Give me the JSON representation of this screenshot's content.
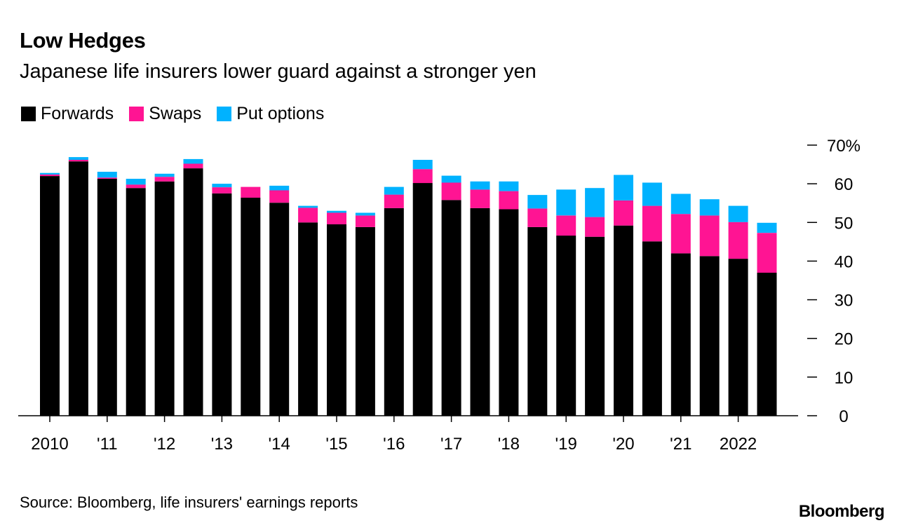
{
  "chart_data": {
    "type": "bar",
    "stacked": true,
    "title": "Low Hedges",
    "subtitle": "Japanese life insurers lower guard against a stronger yen",
    "ylabel": "",
    "xlabel": "",
    "ylim": [
      0,
      70
    ],
    "yticks": [
      0,
      10,
      20,
      30,
      40,
      50,
      60,
      70
    ],
    "ytick_labels": [
      "0",
      "10",
      "20",
      "30",
      "40",
      "50",
      "60",
      "70%"
    ],
    "y_axis_side": "right",
    "categories": [
      "2010 H1",
      "2010 H2",
      "2011 H1",
      "2011 H2",
      "2012 H1",
      "2012 H2",
      "2013 H1",
      "2013 H2",
      "2014 H1",
      "2014 H2",
      "2015 H1",
      "2015 H2",
      "2016 H1",
      "2016 H2",
      "2017 H1",
      "2017 H2",
      "2018 H1",
      "2018 H2",
      "2019 H1",
      "2019 H2",
      "2020 H1",
      "2020 H2",
      "2021 H1",
      "2021 H2",
      "2022 H1",
      "2022 H2"
    ],
    "xtick_labels": [
      "2010",
      "'11",
      "'12",
      "'13",
      "'14",
      "'15",
      "'16",
      "'17",
      "'18",
      "'19",
      "'20",
      "'21",
      "2022"
    ],
    "series": [
      {
        "name": "Forwards",
        "color": "#000000",
        "values": [
          62.0,
          65.8,
          61.3,
          58.9,
          60.6,
          64.0,
          57.5,
          56.4,
          55.1,
          50.0,
          49.5,
          48.8,
          53.7,
          60.2,
          55.8,
          53.7,
          53.4,
          48.8,
          46.6,
          46.3,
          49.2,
          45.1,
          42.0,
          41.3,
          40.6,
          37.0
        ]
      },
      {
        "name": "Swaps",
        "color": "#ff1493",
        "values": [
          0.4,
          0.4,
          0.3,
          0.9,
          1.2,
          1.2,
          1.6,
          2.8,
          3.2,
          3.8,
          3.0,
          3.0,
          3.5,
          3.6,
          4.5,
          4.8,
          4.7,
          4.8,
          5.2,
          5.1,
          6.5,
          9.2,
          10.2,
          10.5,
          9.5,
          10.3
        ]
      },
      {
        "name": "Put options",
        "color": "#00b2ff",
        "values": [
          0.4,
          0.7,
          1.5,
          1.5,
          0.8,
          1.2,
          0.9,
          0.0,
          1.2,
          0.5,
          0.5,
          0.7,
          2.0,
          2.4,
          1.8,
          2.1,
          2.5,
          3.5,
          6.7,
          7.5,
          6.6,
          6.0,
          5.2,
          4.2,
          4.2,
          2.6
        ]
      }
    ],
    "legend_position": "top-left",
    "grid": false
  },
  "source": "Source: Bloomberg, life insurers' earnings reports",
  "brand": "Bloomberg"
}
